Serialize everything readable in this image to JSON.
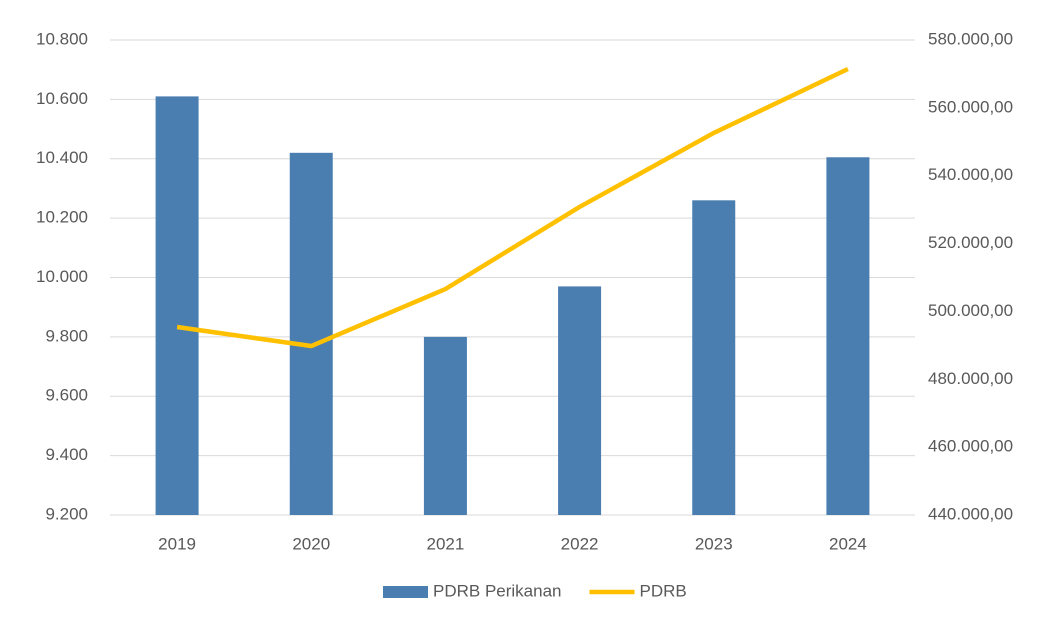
{
  "chart_data": {
    "type": "bar-line",
    "categories": [
      "2019",
      "2020",
      "2021",
      "2022",
      "2023",
      "2024"
    ],
    "series": [
      {
        "name": "PDRB Perikanan",
        "type": "bar",
        "color": "#4a7eb0",
        "values": [
          10610,
          10420,
          9800,
          9970,
          10260,
          10405
        ]
      },
      {
        "name": "PDRB",
        "type": "line",
        "color": "#ffc000",
        "axis": "y2",
        "values": [
          495400,
          489800,
          506600,
          530800,
          552600,
          571450
        ]
      }
    ],
    "ylim": [
      9200,
      10800
    ],
    "yticks": [
      {
        "value": 9200,
        "label": "9.200"
      },
      {
        "value": 9400,
        "label": "9.400"
      },
      {
        "value": 9600,
        "label": "9.600"
      },
      {
        "value": 9800,
        "label": "9.800"
      },
      {
        "value": 10000,
        "label": "10.000"
      },
      {
        "value": 10200,
        "label": "10.200"
      },
      {
        "value": 10400,
        "label": "10.400"
      },
      {
        "value": 10600,
        "label": "10.600"
      },
      {
        "value": 10800,
        "label": "10.800"
      }
    ],
    "y2lim": [
      440000,
      580000
    ],
    "y2ticks": [
      {
        "value": 440000,
        "label": "440.000,00"
      },
      {
        "value": 460000,
        "label": "460.000,00"
      },
      {
        "value": 480000,
        "label": "480.000,00"
      },
      {
        "value": 500000,
        "label": "500.000,00"
      },
      {
        "value": 520000,
        "label": "520.000,00"
      },
      {
        "value": 540000,
        "label": "540.000,00"
      },
      {
        "value": 560000,
        "label": "560.000,00"
      },
      {
        "value": 580000,
        "label": "580.000,00"
      }
    ],
    "grid": true,
    "legend": "bottom"
  }
}
